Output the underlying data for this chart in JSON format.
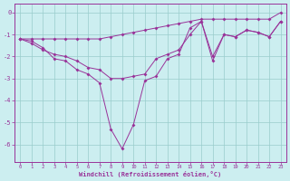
{
  "x": [
    0,
    1,
    2,
    3,
    4,
    5,
    6,
    7,
    8,
    9,
    10,
    11,
    12,
    13,
    14,
    15,
    16,
    17,
    18,
    19,
    20,
    21,
    22,
    23
  ],
  "line1": [
    -1.2,
    -1.2,
    -1.2,
    -1.2,
    -1.2,
    -1.2,
    -1.2,
    -1.2,
    -1.1,
    -1.0,
    -0.9,
    -0.8,
    -0.7,
    -0.6,
    -0.5,
    -0.4,
    -0.3,
    -0.3,
    -0.3,
    -0.3,
    -0.3,
    -0.3,
    -0.3,
    0.0
  ],
  "line2": [
    -1.2,
    -1.4,
    -1.7,
    -1.9,
    -2.0,
    -2.2,
    -2.5,
    -2.6,
    -3.0,
    -3.0,
    -2.9,
    -2.8,
    -2.1,
    -1.9,
    -1.7,
    -1.0,
    -0.4,
    -2.0,
    -1.0,
    -1.1,
    -0.8,
    -0.9,
    -1.1,
    -0.4
  ],
  "line3": [
    -1.2,
    -1.3,
    -1.6,
    -2.1,
    -2.2,
    -2.6,
    -2.8,
    -3.2,
    -5.3,
    -6.2,
    -5.1,
    -3.1,
    -2.9,
    -2.1,
    -1.9,
    -0.7,
    -0.4,
    -2.2,
    -1.0,
    -1.1,
    -0.8,
    -0.9,
    -1.1,
    -0.4
  ],
  "color": "#993399",
  "bg_color": "#cceef0",
  "grid_color": "#99cccc",
  "xlabel": "Windchill (Refroidissement éolien,°C)",
  "ylim": [
    -6.8,
    0.4
  ],
  "xlim": [
    -0.5,
    23.5
  ],
  "yticks": [
    0,
    -1,
    -2,
    -3,
    -4,
    -5,
    -6
  ],
  "xticks": [
    0,
    1,
    2,
    3,
    4,
    5,
    6,
    7,
    8,
    9,
    10,
    11,
    12,
    13,
    14,
    15,
    16,
    17,
    18,
    19,
    20,
    21,
    22,
    23
  ]
}
